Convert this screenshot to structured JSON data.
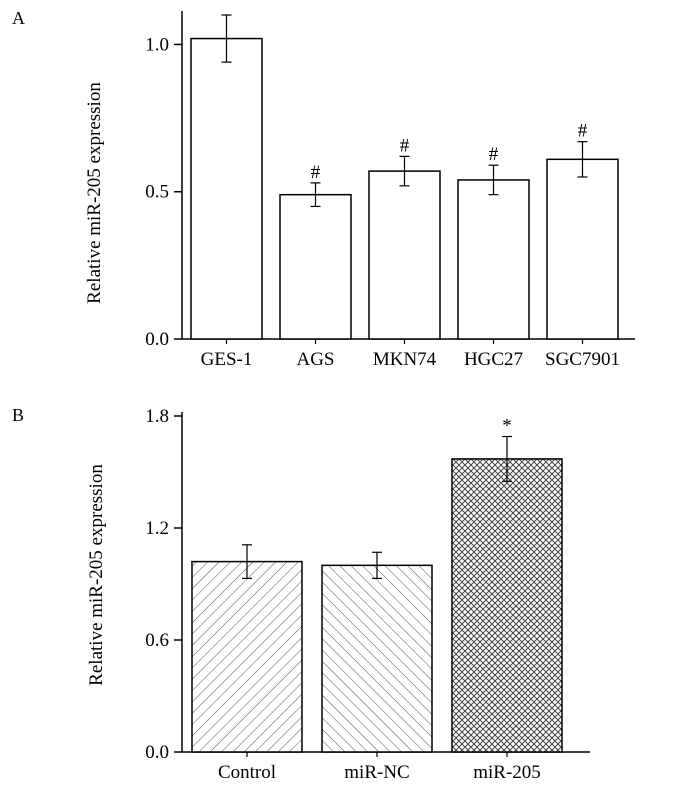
{
  "chart_data": [
    {
      "type": "bar",
      "panel_label": "A",
      "categories": [
        "GES-1",
        "AGS",
        "MKN74",
        "HGC27",
        "SGC7901"
      ],
      "values": [
        1.02,
        0.49,
        0.57,
        0.54,
        0.61
      ],
      "errors": [
        0.08,
        0.04,
        0.05,
        0.05,
        0.06
      ],
      "annotations": [
        "",
        "#",
        "#",
        "#",
        "#"
      ],
      "ylabel": "Relative miR-205 expression",
      "xlabel": "",
      "ylim": [
        0,
        1.1
      ],
      "yticks": [
        0.0,
        0.5,
        1.0
      ],
      "ytick_labels": [
        "0.0",
        "0.5",
        "1.0"
      ],
      "fill": "#ffffff"
    },
    {
      "type": "bar",
      "panel_label": "B",
      "categories": [
        "Control",
        "miR-NC",
        "miR-205"
      ],
      "values": [
        1.02,
        1.0,
        1.57
      ],
      "errors": [
        0.09,
        0.07,
        0.12
      ],
      "annotations": [
        "",
        "",
        "*"
      ],
      "ylabel": "Relative miR-205 expression",
      "xlabel": "",
      "ylim": [
        0,
        1.8
      ],
      "yticks": [
        0.0,
        0.6,
        1.2,
        1.8
      ],
      "ytick_labels": [
        "0.0",
        "0.6",
        "1.2",
        "1.8"
      ],
      "patterns": [
        "diag-right",
        "diag-left",
        "crosshatch"
      ]
    }
  ]
}
